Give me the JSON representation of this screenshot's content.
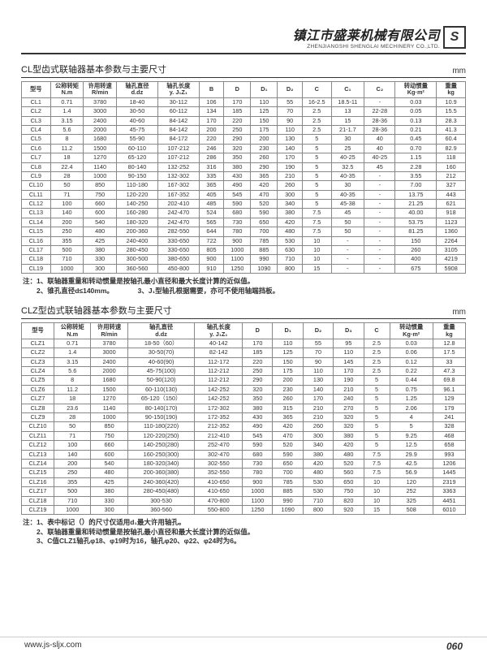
{
  "header": {
    "company_cn": "镇江市盛莱机械有限公司",
    "company_en": "ZHENJIANGSHI SHENGLAI MECHINERY CO.,LTD.",
    "logo": "S"
  },
  "section1": {
    "title": "CL型齿式联轴器基本参数与主要尺寸",
    "unit": "mm",
    "columns": [
      "型号",
      "公称转矩\nN.m",
      "许用转速\nR/min",
      "轴孔直径\nd.dz",
      "轴孔长度\ny. J₁Z₁",
      "B",
      "D",
      "D₁",
      "D₂",
      "C",
      "C₁",
      "C₂",
      "转动惯量\nKg·m²",
      "重量\nkg"
    ],
    "rows": [
      [
        "CL1",
        "0.71",
        "3780",
        "18-40",
        "30-112",
        "106",
        "170",
        "110",
        "55",
        "16-2.5",
        "18.5-11",
        "-",
        "0.03",
        "10.9"
      ],
      [
        "CL2",
        "1.4",
        "3000",
        "30-50",
        "60-112",
        "134",
        "185",
        "125",
        "70",
        "2.5",
        "13",
        "22-28",
        "0.05",
        "15.5"
      ],
      [
        "CL3",
        "3.15",
        "2400",
        "40-60",
        "84-142",
        "170",
        "220",
        "150",
        "90",
        "2.5",
        "15",
        "28-36",
        "0.13",
        "28.3"
      ],
      [
        "CL4",
        "5.6",
        "2000",
        "45-75",
        "84-142",
        "200",
        "250",
        "175",
        "110",
        "2.5",
        "21-1.7",
        "28-36",
        "0.21",
        "41.3"
      ],
      [
        "CL5",
        "8",
        "1680",
        "55-90",
        "84-172",
        "220",
        "290",
        "200",
        "130",
        "5",
        "30",
        "40",
        "0.45",
        "60.4"
      ],
      [
        "CL6",
        "11.2",
        "1500",
        "60-110",
        "107-212",
        "246",
        "320",
        "230",
        "140",
        "5",
        "25",
        "40",
        "0.70",
        "82.9"
      ],
      [
        "CL7",
        "18",
        "1270",
        "65-120",
        "107-212",
        "286",
        "350",
        "260",
        "170",
        "5",
        "40-25",
        "40-25",
        "1.15",
        "118"
      ],
      [
        "CL8",
        "22.4",
        "1140",
        "80-140",
        "132-252",
        "316",
        "380",
        "290",
        "190",
        "5",
        "32.5",
        "45",
        "2.28",
        "160"
      ],
      [
        "CL9",
        "28",
        "1000",
        "90-150",
        "132-302",
        "335",
        "430",
        "365",
        "210",
        "5",
        "40-35",
        "-",
        "3.55",
        "212"
      ],
      [
        "CL10",
        "50",
        "850",
        "110-180",
        "167-302",
        "365",
        "490",
        "420",
        "260",
        "5",
        "30",
        "-",
        "7.00",
        "327"
      ],
      [
        "CL11",
        "71",
        "750",
        "120-220",
        "167-352",
        "405",
        "545",
        "470",
        "300",
        "5",
        "40-35",
        "-",
        "13.75",
        "443"
      ],
      [
        "CL12",
        "100",
        "660",
        "140-250",
        "202-410",
        "485",
        "590",
        "520",
        "340",
        "5",
        "45-38",
        "-",
        "21.25",
        "621"
      ],
      [
        "CL13",
        "140",
        "600",
        "160-280",
        "242-470",
        "524",
        "680",
        "590",
        "380",
        "7.5",
        "45",
        "-",
        "40.00",
        "918"
      ],
      [
        "CL14",
        "200",
        "540",
        "180-320",
        "242-470",
        "565",
        "730",
        "650",
        "420",
        "7.5",
        "50",
        "-",
        "53.75",
        "1123"
      ],
      [
        "CL15",
        "250",
        "480",
        "200-360",
        "282-550",
        "644",
        "780",
        "700",
        "480",
        "7.5",
        "50",
        "-",
        "81.25",
        "1360"
      ],
      [
        "CL16",
        "355",
        "425",
        "240-400",
        "330-650",
        "722",
        "900",
        "785",
        "530",
        "10",
        "-",
        "-",
        "150",
        "2264"
      ],
      [
        "CL17",
        "500",
        "380",
        "280-450",
        "330-650",
        "805",
        "1000",
        "885",
        "630",
        "10",
        "-",
        "-",
        "260",
        "3105"
      ],
      [
        "CL18",
        "710",
        "330",
        "300-500",
        "380-650",
        "900",
        "1100",
        "990",
        "710",
        "10",
        "-",
        "-",
        "400",
        "4219"
      ],
      [
        "CL19",
        "1000",
        "300",
        "360-560",
        "450-800",
        "910",
        "1250",
        "1090",
        "800",
        "15",
        "-",
        "-",
        "675",
        "5908"
      ]
    ],
    "notes": [
      "注：1、联轴器重量和转动惯量是按轴孔最小直径和最大长度计算的近似值。",
      "　　2、锥孔直径d≤140mm。　　　　3、J₁型轴孔根据需要，亦可不使用轴端挡板。"
    ],
    "widths": [
      28,
      32,
      32,
      40,
      40,
      24,
      26,
      26,
      24,
      28,
      32,
      30,
      40,
      28
    ]
  },
  "section2": {
    "title": "CLZ型齿式联轴器基本参数与主要尺寸",
    "unit": "mm",
    "columns": [
      "型号",
      "公称转矩\nN.m",
      "许用转速\nR/min",
      "轴孔直径\nd.dz",
      "轴孔长度\ny. J₁Z₁",
      "D",
      "D₁",
      "D₂",
      "D₃",
      "C",
      "转动惯量\nKg·m²",
      "重量\nkg"
    ],
    "rows": [
      [
        "CLZ1",
        "0.71",
        "3780",
        "18-50（60）",
        "40-142",
        "170",
        "110",
        "55",
        "95",
        "2.5",
        "0.03",
        "12.8"
      ],
      [
        "CLZ2",
        "1.4",
        "3000",
        "30-50(70)",
        "82-142",
        "185",
        "125",
        "70",
        "110",
        "2.5",
        "0.06",
        "17.5"
      ],
      [
        "CLZ3",
        "3.15",
        "2400",
        "40-60(90)",
        "112-172",
        "220",
        "150",
        "90",
        "145",
        "2.5",
        "0.12",
        "33"
      ],
      [
        "CLZ4",
        "5.6",
        "2000",
        "45-75(100)",
        "112-212",
        "250",
        "175",
        "110",
        "170",
        "2.5",
        "0.22",
        "47.3"
      ],
      [
        "CLZ5",
        "8",
        "1680",
        "50-90(120)",
        "112-212",
        "290",
        "200",
        "130",
        "190",
        "5",
        "0.44",
        "69.8"
      ],
      [
        "CLZ6",
        "11.2",
        "1500",
        "60-110(130)",
        "142-252",
        "320",
        "230",
        "140",
        "210",
        "5",
        "0.75",
        "96.1"
      ],
      [
        "CLZ7",
        "18",
        "1270",
        "65-120（150）",
        "142-252",
        "350",
        "260",
        "170",
        "240",
        "5",
        "1.25",
        "129"
      ],
      [
        "CLZ8",
        "23.6",
        "1140",
        "80-140(170)",
        "172-302",
        "380",
        "315",
        "210",
        "270",
        "5",
        "2.06",
        "179"
      ],
      [
        "CLZ9",
        "28",
        "1000",
        "90-150(190)",
        "172-352",
        "430",
        "365",
        "210",
        "320",
        "5",
        "4",
        "241"
      ],
      [
        "CLZ10",
        "50",
        "850",
        "110-180(220)",
        "212-352",
        "490",
        "420",
        "260",
        "320",
        "5",
        "5",
        "328"
      ],
      [
        "CLZ11",
        "71",
        "750",
        "120-220(250)",
        "212-410",
        "545",
        "470",
        "300",
        "380",
        "5",
        "9.25",
        "468"
      ],
      [
        "CLZ12",
        "100",
        "660",
        "140-250(280)",
        "252-470",
        "590",
        "520",
        "340",
        "420",
        "5",
        "12.5",
        "658"
      ],
      [
        "CLZ13",
        "140",
        "600",
        "160-250(300)",
        "302-470",
        "680",
        "590",
        "380",
        "480",
        "7.5",
        "29.9",
        "993"
      ],
      [
        "CLZ14",
        "200",
        "540",
        "180-320(340)",
        "302-550",
        "730",
        "650",
        "420",
        "520",
        "7.5",
        "42.5",
        "1206"
      ],
      [
        "CLZ15",
        "250",
        "480",
        "200-360(380)",
        "352-550",
        "780",
        "700",
        "480",
        "560",
        "7.5",
        "56.9",
        "1445"
      ],
      [
        "CLZ16",
        "355",
        "425",
        "240-360(420)",
        "410-650",
        "900",
        "785",
        "530",
        "650",
        "10",
        "120",
        "2319"
      ],
      [
        "CLZ17",
        "500",
        "380",
        "280-450(480)",
        "410-650",
        "1000",
        "885",
        "530",
        "750",
        "10",
        "252",
        "3363"
      ],
      [
        "CLZ18",
        "710",
        "330",
        "300-530",
        "470-800",
        "1100",
        "990",
        "710",
        "820",
        "10",
        "325",
        "4451"
      ],
      [
        "CLZ19",
        "1000",
        "300",
        "360-560",
        "550-800",
        "1250",
        "1090",
        "800",
        "920",
        "15",
        "508",
        "6010"
      ]
    ],
    "notes": [
      "注：1、表中标记（）的尺寸仅适用d₁最大许用轴孔。",
      "　　2、联轴器重量和转动惯量是按轴孔最小直径和最大长度计算的近似值。",
      "　　3、C值CLZ1轴孔φ18、φ19时为16，轴孔φ20、φ22、φ24时为6。"
    ],
    "widths": [
      30,
      34,
      34,
      62,
      44,
      28,
      28,
      28,
      28,
      24,
      40,
      30
    ]
  },
  "footer": {
    "url": "www.js-sljx.com",
    "page": "060"
  }
}
